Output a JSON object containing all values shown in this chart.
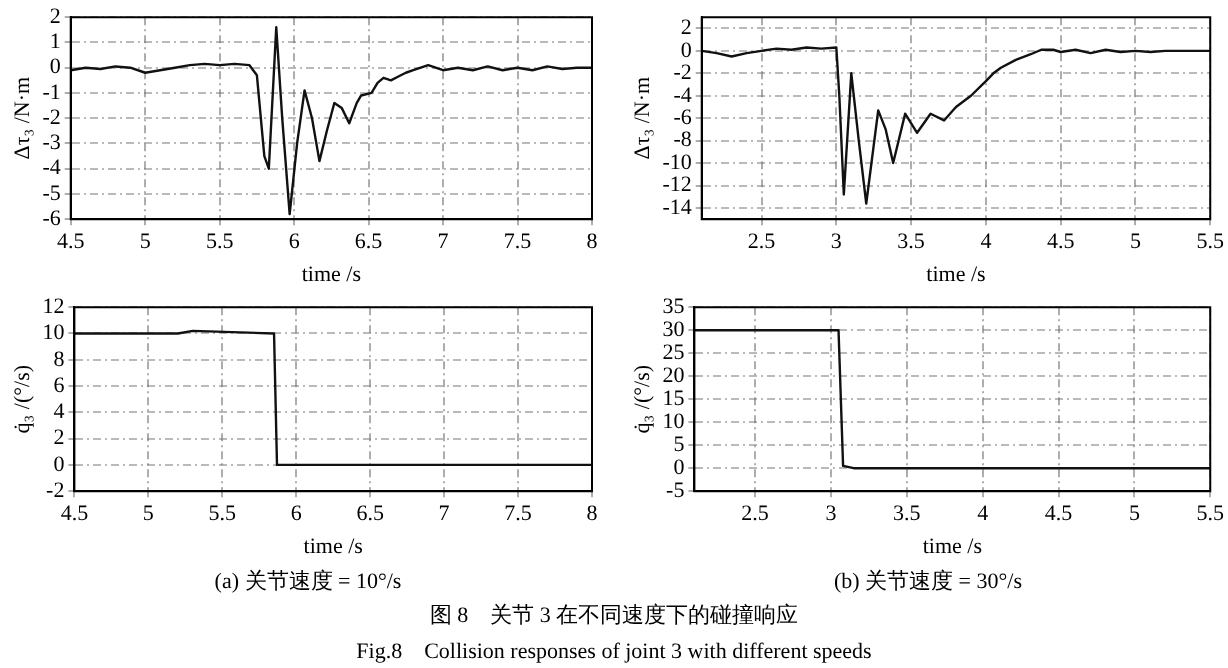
{
  "chart_data": [
    {
      "type": "line",
      "ylabel": "Δτ₃ /N·m",
      "xlabel": "time /s",
      "xlim": [
        4.5,
        8
      ],
      "xticks": [
        4.5,
        5,
        5.5,
        6,
        6.5,
        7,
        7.5,
        8
      ],
      "ylim": [
        -6,
        2
      ],
      "yticks": [
        -6,
        -5,
        -4,
        -3,
        -2,
        -1,
        0,
        1,
        2
      ],
      "grid": true,
      "legend": false,
      "series": [
        {
          "color": "#111111",
          "x": [
            4.5,
            4.6,
            4.7,
            4.8,
            4.9,
            5.0,
            5.1,
            5.2,
            5.3,
            5.4,
            5.5,
            5.6,
            5.7,
            5.75,
            5.8,
            5.83,
            5.88,
            5.92,
            5.97,
            6.02,
            6.07,
            6.12,
            6.17,
            6.22,
            6.27,
            6.32,
            6.37,
            6.42,
            6.45,
            6.52,
            6.56,
            6.6,
            6.65,
            6.7,
            6.75,
            6.8,
            6.9,
            7.0,
            7.1,
            7.2,
            7.3,
            7.4,
            7.5,
            7.6,
            7.7,
            7.8,
            7.9,
            8.0
          ],
          "values": [
            -0.1,
            0.0,
            -0.05,
            0.05,
            0.0,
            -0.2,
            -0.1,
            0.0,
            0.1,
            0.15,
            0.1,
            0.15,
            0.1,
            -0.3,
            -3.5,
            -4.0,
            1.6,
            -2.0,
            -5.8,
            -3.0,
            -0.9,
            -2.0,
            -3.7,
            -2.5,
            -1.4,
            -1.6,
            -2.2,
            -1.4,
            -1.1,
            -1.0,
            -0.6,
            -0.4,
            -0.5,
            -0.35,
            -0.2,
            -0.1,
            0.1,
            -0.1,
            0.0,
            -0.1,
            0.05,
            -0.1,
            0.0,
            -0.1,
            0.05,
            -0.05,
            0.0,
            0.0
          ]
        }
      ]
    },
    {
      "type": "line",
      "ylabel": "Δτ₃ /N·m",
      "xlabel": "time /s",
      "xlim": [
        2.1,
        5.5
      ],
      "xticks": [
        2.5,
        3,
        3.5,
        4,
        4.5,
        5,
        5.5
      ],
      "ylim": [
        -15,
        3
      ],
      "yticks": [
        -14,
        -12,
        -10,
        -8,
        -6,
        -4,
        -2,
        0,
        2
      ],
      "grid": true,
      "legend": false,
      "series": [
        {
          "color": "#111111",
          "x": [
            2.1,
            2.2,
            2.3,
            2.4,
            2.5,
            2.6,
            2.7,
            2.8,
            2.9,
            3.0,
            3.02,
            3.05,
            3.1,
            3.15,
            3.2,
            3.28,
            3.33,
            3.38,
            3.46,
            3.54,
            3.63,
            3.72,
            3.8,
            3.9,
            4.0,
            4.05,
            4.1,
            4.2,
            4.3,
            4.37,
            4.45,
            4.5,
            4.6,
            4.7,
            4.8,
            4.9,
            5.0,
            5.1,
            5.2,
            5.3,
            5.4,
            5.5
          ],
          "values": [
            0,
            -0.2,
            -0.5,
            -0.2,
            0,
            0.2,
            0.1,
            0.3,
            0.2,
            0.3,
            -4,
            -12.8,
            -2,
            -8,
            -13.6,
            -5.3,
            -7,
            -10,
            -5.6,
            -7.3,
            -5.6,
            -6.2,
            -5,
            -4,
            -2.7,
            -2,
            -1.5,
            -0.8,
            -0.3,
            0.1,
            0.1,
            -0.1,
            0.1,
            -0.2,
            0.1,
            -0.1,
            0,
            -0.1,
            0,
            0,
            0,
            0
          ]
        }
      ]
    },
    {
      "type": "line",
      "ylabel": "q̇₃ /(°/s)",
      "xlabel": "time /s",
      "xlim": [
        4.5,
        8
      ],
      "xticks": [
        4.5,
        5,
        5.5,
        6,
        6.5,
        7,
        7.5,
        8
      ],
      "ylim": [
        -2,
        12
      ],
      "yticks": [
        -2,
        0,
        2,
        4,
        6,
        8,
        10,
        12
      ],
      "grid": true,
      "legend": false,
      "annotations": [
        "(a) 关节速度 = 10°/s"
      ],
      "series": [
        {
          "color": "#111111",
          "x": [
            4.5,
            5.2,
            5.3,
            5.85,
            5.87,
            8.0
          ],
          "values": [
            10,
            10,
            10.2,
            10,
            0,
            0
          ]
        }
      ]
    },
    {
      "type": "line",
      "ylabel": "q̇₃ /(°/s)",
      "xlabel": "time /s",
      "xlim": [
        2.1,
        5.5
      ],
      "xticks": [
        2.5,
        3,
        3.5,
        4,
        4.5,
        5,
        5.5
      ],
      "ylim": [
        -5,
        35
      ],
      "yticks": [
        -5,
        0,
        5,
        10,
        15,
        20,
        25,
        30,
        35
      ],
      "grid": true,
      "legend": false,
      "annotations": [
        "(b) 关节速度 = 30°/s"
      ],
      "series": [
        {
          "color": "#111111",
          "x": [
            2.1,
            3.05,
            3.08,
            3.15,
            5.5
          ],
          "values": [
            30,
            30,
            0.5,
            0,
            0
          ]
        }
      ]
    },
    {
      "type": "other",
      "title": "图 8　关节 3 在不同速度下的碰撞响应",
      "subtitle": "Fig.8　Collision responses of joint 3 with different speeds"
    }
  ]
}
